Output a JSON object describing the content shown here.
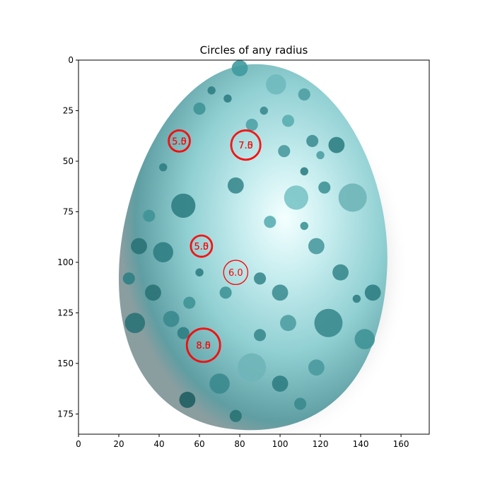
{
  "chart_data": {
    "type": "scatter",
    "title": "Circles of any radius",
    "xlabel": "",
    "ylabel": "",
    "xlim": [
      0,
      174
    ],
    "ylim": [
      185,
      0
    ],
    "y_inverted": true,
    "xticks": [
      0,
      20,
      40,
      60,
      80,
      100,
      120,
      140,
      160
    ],
    "yticks": [
      0,
      25,
      50,
      75,
      100,
      125,
      150,
      175
    ],
    "xtick_labels": [
      "0",
      "20",
      "40",
      "60",
      "80",
      "100",
      "120",
      "140",
      "160"
    ],
    "ytick_labels": [
      "0",
      "25",
      "50",
      "75",
      "100",
      "125",
      "150",
      "175"
    ],
    "grid": false,
    "background_image": "speckled-egg-photo",
    "circle_color": "#ff0000",
    "circles": [
      {
        "x": 50,
        "y": 40,
        "r": 5.0,
        "label": "5.0"
      },
      {
        "x": 50,
        "y": 40,
        "r": 5.5,
        "label": "5.5"
      },
      {
        "x": 83,
        "y": 42,
        "r": 7.0,
        "label": "7.0"
      },
      {
        "x": 83,
        "y": 42,
        "r": 7.5,
        "label": "7.5"
      },
      {
        "x": 61,
        "y": 92,
        "r": 5.0,
        "label": "5.0"
      },
      {
        "x": 61,
        "y": 92,
        "r": 5.5,
        "label": "5.5"
      },
      {
        "x": 78,
        "y": 105,
        "r": 6.0,
        "label": "6.0"
      },
      {
        "x": 62,
        "y": 141,
        "r": 8.0,
        "label": "8.0"
      },
      {
        "x": 62,
        "y": 141,
        "r": 8.5,
        "label": "8.5"
      }
    ]
  }
}
